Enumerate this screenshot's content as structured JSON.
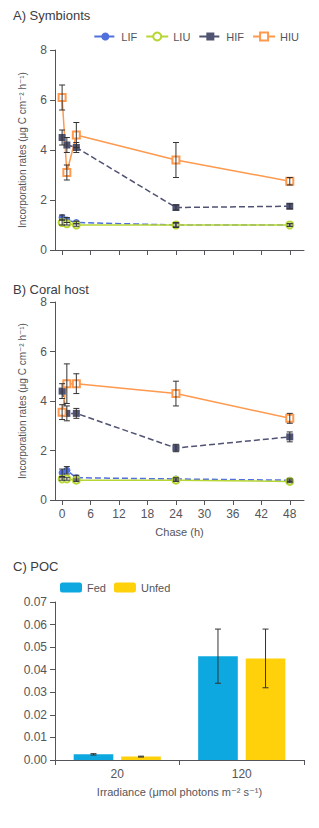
{
  "chart_data": [
    {
      "type": "line",
      "title": "A) Symbionts",
      "ylabel": "Incorporation rates (μg C cm⁻² h⁻¹)",
      "x": [
        0,
        1,
        3,
        24,
        48
      ],
      "series": [
        {
          "name": "LIF",
          "marker": "circle",
          "line_style": "dashed",
          "values": [
            1.3,
            1.2,
            1.1,
            1.0,
            1.0
          ],
          "yerr": [
            0.1,
            0.1,
            0.05,
            0.1,
            0.05
          ]
        },
        {
          "name": "LIU",
          "marker": "open_circle",
          "line_style": "solid",
          "values": [
            1.1,
            1.05,
            1.0,
            1.0,
            1.0
          ],
          "yerr": [
            0.1,
            0.05,
            0.05,
            0.05,
            0.05
          ]
        },
        {
          "name": "HIF",
          "marker": "square",
          "line_style": "dashed",
          "values": [
            4.5,
            4.2,
            4.1,
            1.7,
            1.75
          ],
          "yerr": [
            0.3,
            0.3,
            0.2,
            0.1,
            0.1
          ]
        },
        {
          "name": "HIU",
          "marker": "open_square",
          "line_style": "solid",
          "values": [
            6.1,
            3.1,
            4.6,
            3.6,
            2.75
          ],
          "yerr": [
            0.5,
            0.3,
            0.5,
            0.7,
            0.15
          ]
        }
      ],
      "xlim": [
        -1.5,
        51
      ],
      "xticks": [
        0,
        6,
        12,
        18,
        24,
        30,
        36,
        42,
        48
      ],
      "ylim": [
        0,
        8
      ],
      "yticks": [
        0,
        2,
        4,
        6,
        8
      ],
      "grid": false,
      "legend": "upper right",
      "tick_labels": "y"
    },
    {
      "type": "line",
      "title": "B) Coral host",
      "xlabel": "Chase (h)",
      "ylabel": "Incorporation rates (μg C cm⁻² h⁻¹)",
      "x": [
        0,
        1,
        3,
        24,
        48
      ],
      "series": [
        {
          "name": "LIF",
          "marker": "circle",
          "line_style": "dashed",
          "values": [
            1.1,
            1.2,
            0.9,
            0.85,
            0.8
          ],
          "yerr": [
            0.15,
            0.15,
            0.1,
            0.05,
            0.05
          ]
        },
        {
          "name": "LIU",
          "marker": "open_circle",
          "line_style": "solid",
          "values": [
            0.85,
            0.85,
            0.8,
            0.8,
            0.75
          ],
          "yerr": [
            0.05,
            0.05,
            0.05,
            0.05,
            0.05
          ]
        },
        {
          "name": "HIF",
          "marker": "square",
          "line_style": "dashed",
          "values": [
            4.4,
            3.5,
            3.5,
            2.1,
            2.55
          ],
          "yerr": [
            0.3,
            0.3,
            0.2,
            0.15,
            0.2
          ]
        },
        {
          "name": "HIU",
          "marker": "open_square",
          "line_style": "solid",
          "values": [
            3.55,
            4.7,
            4.7,
            4.3,
            3.3
          ],
          "yerr": [
            0.3,
            0.8,
            0.4,
            0.5,
            0.2
          ]
        }
      ],
      "xlim": [
        -1.5,
        51
      ],
      "xticks": [
        0,
        6,
        12,
        18,
        24,
        30,
        36,
        42,
        48
      ],
      "ylim": [
        0,
        8
      ],
      "yticks": [
        0,
        2,
        4,
        6,
        8
      ],
      "grid": false
    },
    {
      "type": "bar",
      "title": "C) POC",
      "xlabel": "Irradiance (μmol photons m⁻² s⁻¹)",
      "categories": [
        "20",
        "120"
      ],
      "series": [
        {
          "name": "Fed",
          "values": [
            0.0025,
            0.046
          ],
          "yerr": [
            0.0003,
            0.012
          ]
        },
        {
          "name": "Unfed",
          "values": [
            0.0015,
            0.045
          ],
          "yerr": [
            0.0002,
            0.013
          ]
        }
      ],
      "ylim": [
        0,
        0.07
      ],
      "yticks": [
        {
          "value": 0.0,
          "label": "0.00"
        },
        {
          "value": 0.01,
          "label": "0.01"
        },
        {
          "value": 0.02,
          "label": "0.02"
        },
        {
          "value": 0.03,
          "label": "0.03"
        },
        {
          "value": 0.04,
          "label": "0.04"
        },
        {
          "value": 0.05,
          "label": "0.05"
        },
        {
          "value": 0.06,
          "label": "0.06"
        },
        {
          "value": 0.07,
          "label": "0.07"
        }
      ],
      "grid": false,
      "legend": "upper left"
    }
  ]
}
